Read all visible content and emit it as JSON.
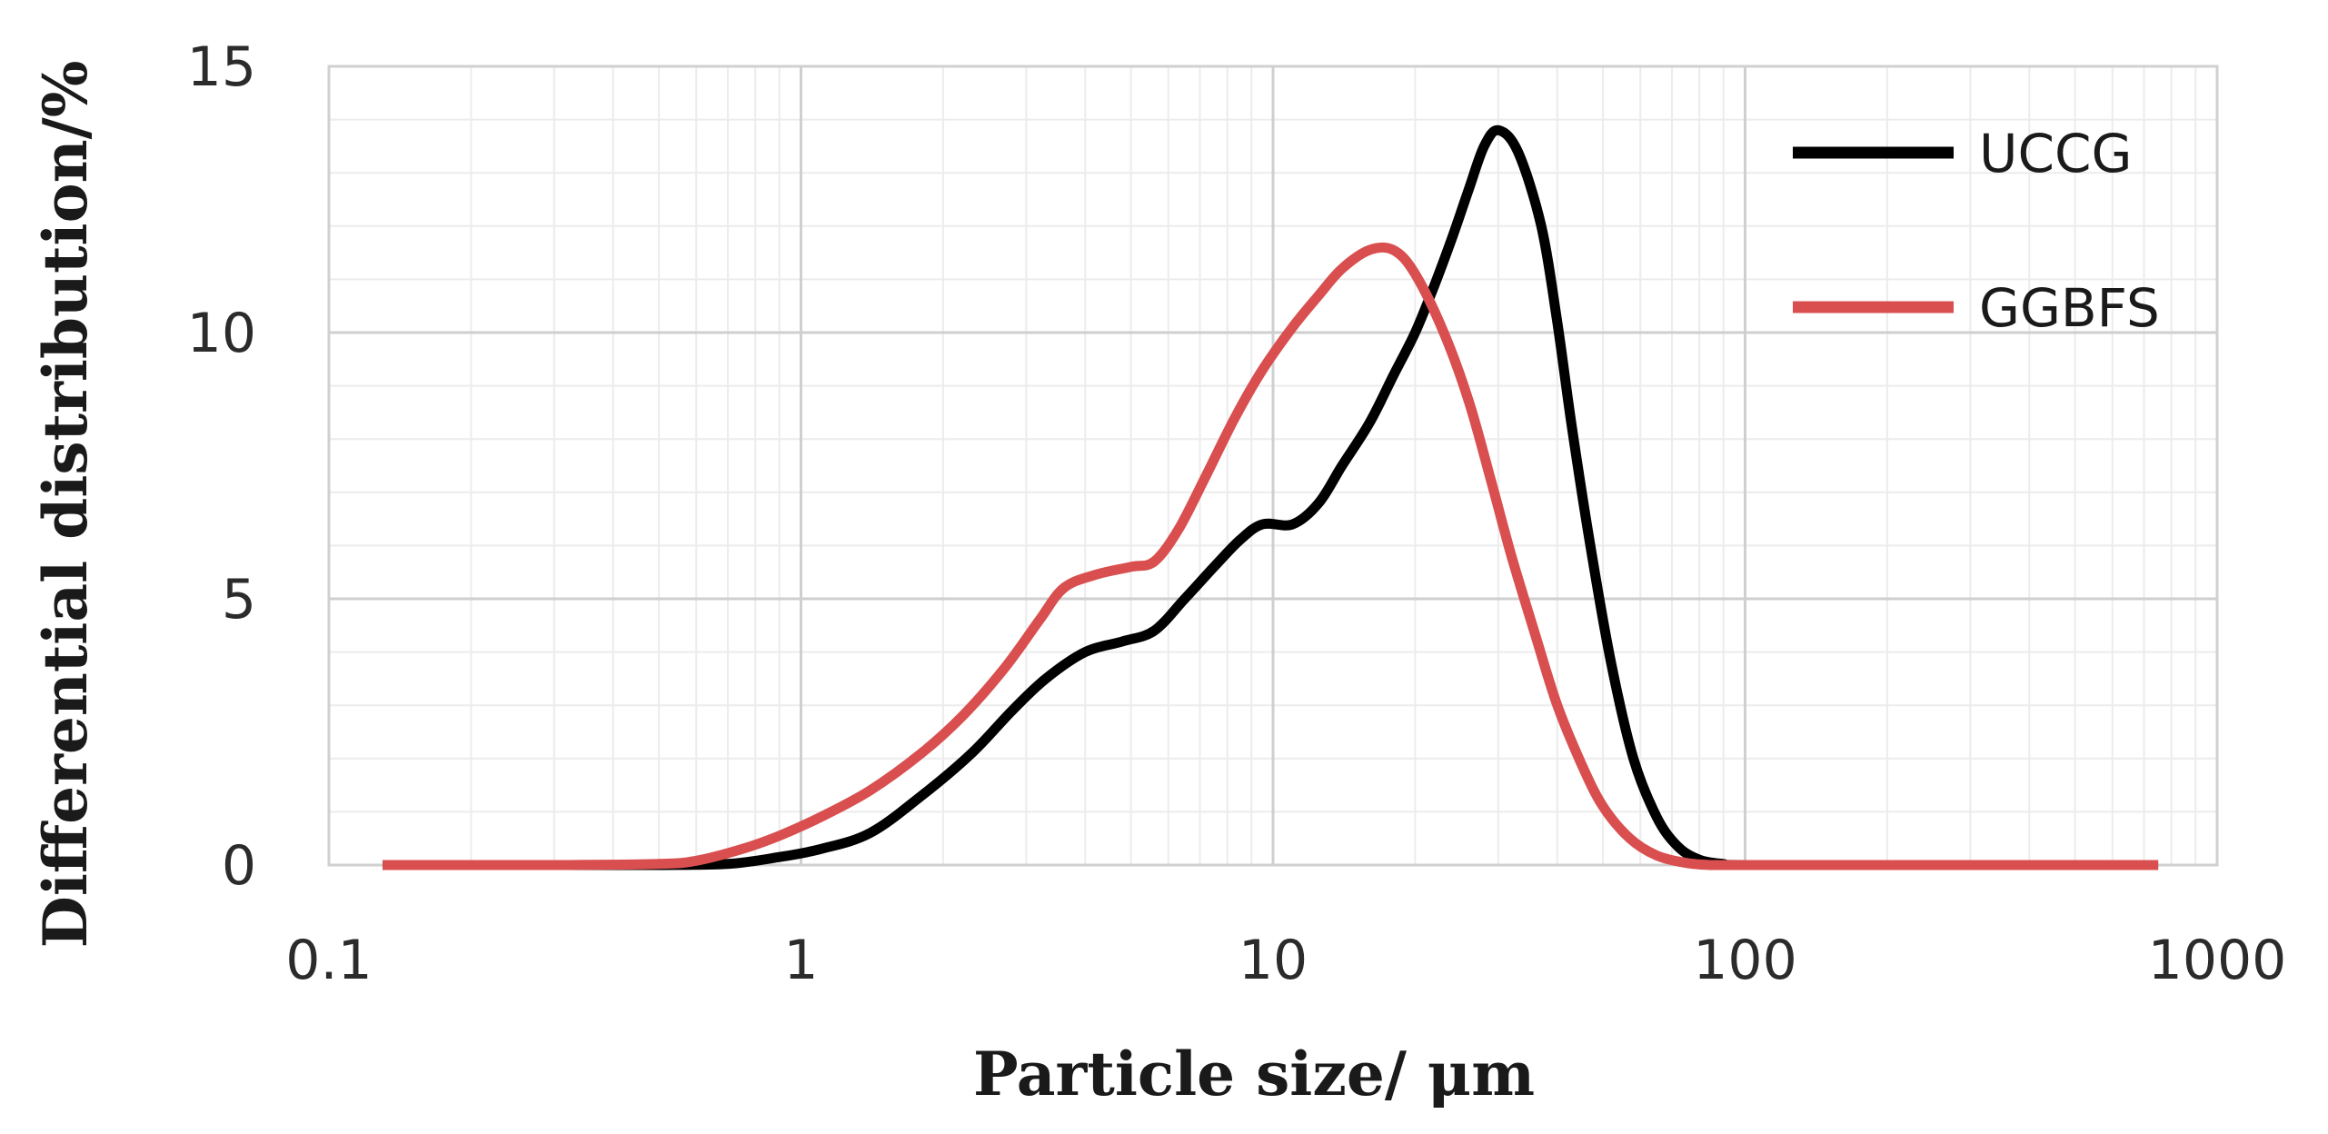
{
  "chart_data": {
    "type": "line",
    "xscale": "log",
    "xlabel": "Particle size/ μm",
    "ylabel": "Differential distribution/%",
    "xlim": [
      0.1,
      1000
    ],
    "ylim": [
      0,
      15
    ],
    "xticks": [
      {
        "value": 0.1,
        "label": "0.1"
      },
      {
        "value": 1,
        "label": "1"
      },
      {
        "value": 10,
        "label": "10"
      },
      {
        "value": 100,
        "label": "100"
      },
      {
        "value": 1000,
        "label": "1000"
      }
    ],
    "yticks": [
      {
        "value": 0,
        "label": "0"
      },
      {
        "value": 5,
        "label": "5"
      },
      {
        "value": 10,
        "label": "10"
      },
      {
        "value": 15,
        "label": "15"
      }
    ],
    "grid": true,
    "legend_position": "top-right",
    "series": [
      {
        "name": "UCCG",
        "color": "#000000",
        "points": [
          [
            0.13,
            0
          ],
          [
            0.3,
            0
          ],
          [
            0.5,
            0
          ],
          [
            0.7,
            0.02
          ],
          [
            0.9,
            0.15
          ],
          [
            1.1,
            0.3
          ],
          [
            1.4,
            0.6
          ],
          [
            1.8,
            1.3
          ],
          [
            2.3,
            2.1
          ],
          [
            2.8,
            2.9
          ],
          [
            3.3,
            3.5
          ],
          [
            4.0,
            4.0
          ],
          [
            4.8,
            4.2
          ],
          [
            5.6,
            4.4
          ],
          [
            6.5,
            5.0
          ],
          [
            7.5,
            5.6
          ],
          [
            8.5,
            6.1
          ],
          [
            9.5,
            6.4
          ],
          [
            11,
            6.4
          ],
          [
            12.5,
            6.8
          ],
          [
            14,
            7.5
          ],
          [
            16,
            8.3
          ],
          [
            18,
            9.2
          ],
          [
            20,
            10.0
          ],
          [
            22,
            10.9
          ],
          [
            24,
            11.8
          ],
          [
            26,
            12.7
          ],
          [
            28,
            13.5
          ],
          [
            30,
            13.8
          ],
          [
            33,
            13.4
          ],
          [
            37,
            12.0
          ],
          [
            40,
            10.2
          ],
          [
            43,
            8.2
          ],
          [
            47,
            6.0
          ],
          [
            52,
            3.8
          ],
          [
            58,
            2.0
          ],
          [
            65,
            0.9
          ],
          [
            72,
            0.35
          ],
          [
            80,
            0.1
          ],
          [
            90,
            0.02
          ],
          [
            100,
            0
          ],
          [
            300,
            0
          ],
          [
            750,
            0
          ]
        ]
      },
      {
        "name": "GGBFS",
        "color": "#d94f4f",
        "points": [
          [
            0.13,
            0
          ],
          [
            0.3,
            0
          ],
          [
            0.5,
            0.02
          ],
          [
            0.6,
            0.08
          ],
          [
            0.75,
            0.3
          ],
          [
            0.9,
            0.55
          ],
          [
            1.1,
            0.9
          ],
          [
            1.4,
            1.4
          ],
          [
            1.8,
            2.1
          ],
          [
            2.2,
            2.8
          ],
          [
            2.7,
            3.7
          ],
          [
            3.2,
            4.6
          ],
          [
            3.6,
            5.2
          ],
          [
            4.2,
            5.45
          ],
          [
            5.0,
            5.6
          ],
          [
            5.6,
            5.7
          ],
          [
            6.3,
            6.3
          ],
          [
            7.2,
            7.3
          ],
          [
            8.3,
            8.4
          ],
          [
            9.5,
            9.3
          ],
          [
            11,
            10.1
          ],
          [
            12.5,
            10.7
          ],
          [
            14,
            11.2
          ],
          [
            16,
            11.55
          ],
          [
            18,
            11.55
          ],
          [
            20,
            11.1
          ],
          [
            23,
            10.0
          ],
          [
            26,
            8.7
          ],
          [
            29,
            7.2
          ],
          [
            32,
            5.8
          ],
          [
            36,
            4.3
          ],
          [
            40,
            3.0
          ],
          [
            45,
            1.9
          ],
          [
            50,
            1.1
          ],
          [
            57,
            0.5
          ],
          [
            65,
            0.18
          ],
          [
            75,
            0.04
          ],
          [
            85,
            0
          ],
          [
            100,
            0
          ],
          [
            300,
            0
          ],
          [
            750,
            0
          ]
        ]
      }
    ]
  }
}
